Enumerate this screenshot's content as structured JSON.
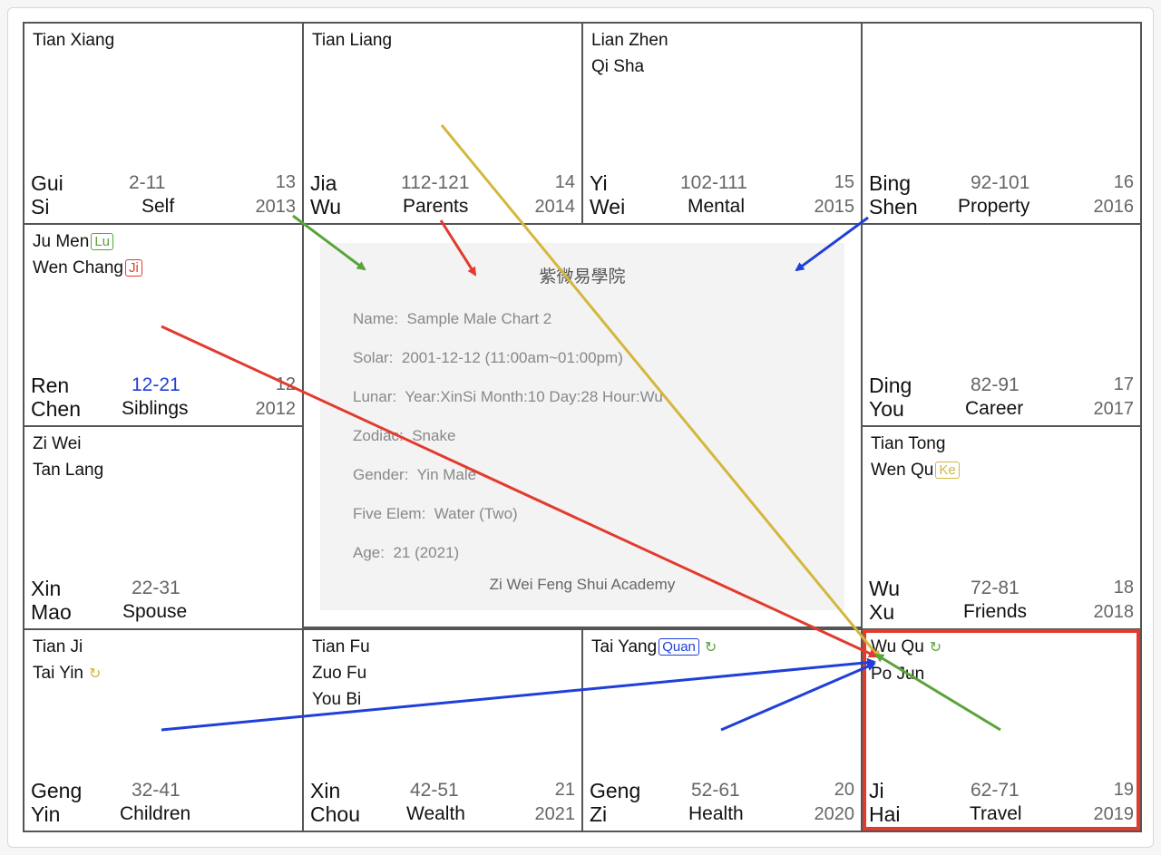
{
  "colors": {
    "border": "#555555",
    "highlight": "#e23b2e",
    "lu": "#5aa33b",
    "ji": "#e23b2e",
    "ke": "#d4b73c",
    "quan": "#1f3fd8",
    "blue_range": "#1f3fd8"
  },
  "palaces": [
    {
      "stars": [
        "Tian Xiang"
      ],
      "stem": "Gui",
      "branch": "Si",
      "range": "2-11",
      "palace": "Self",
      "num": "13",
      "year": "2013"
    },
    {
      "stars": [
        "Tian Liang"
      ],
      "stem": "Jia",
      "branch": "Wu",
      "range": "112-121",
      "palace": "Parents",
      "num": "14",
      "year": "2014"
    },
    {
      "stars": [
        "Lian Zhen",
        "Qi Sha"
      ],
      "stem": "Yi",
      "branch": "Wei",
      "range": "102-111",
      "palace": "Mental",
      "num": "15",
      "year": "2015"
    },
    {
      "stars": [],
      "stem": "Bing",
      "branch": "Shen",
      "range": "92-101",
      "palace": "Property",
      "num": "16",
      "year": "2016"
    },
    {
      "stars": [
        "Ju Men",
        "Wen Chang"
      ],
      "stem": "Ren",
      "branch": "Chen",
      "range": "12-21",
      "palace": "Siblings",
      "num": "12",
      "year": "2012"
    },
    {
      "stars": [],
      "stem": "Ding",
      "branch": "You",
      "range": "82-91",
      "palace": "Career",
      "num": "17",
      "year": "2017"
    },
    {
      "stars": [
        "Zi Wei",
        "Tan Lang"
      ],
      "stem": "Xin",
      "branch": "Mao",
      "range": "22-31",
      "palace": "Spouse",
      "num": "",
      "year": ""
    },
    {
      "stars": [
        "Tian Tong",
        "Wen Qu"
      ],
      "stem": "Wu",
      "branch": "Xu",
      "range": "72-81",
      "palace": "Friends",
      "num": "18",
      "year": "2018"
    },
    {
      "stars": [
        "Tian Ji",
        "Tai Yin"
      ],
      "stem": "Geng",
      "branch": "Yin",
      "range": "32-41",
      "palace": "Children",
      "num": "",
      "year": ""
    },
    {
      "stars": [
        "Tian Fu",
        "Zuo Fu",
        "You Bi"
      ],
      "stem": "Xin",
      "branch": "Chou",
      "range": "42-51",
      "palace": "Wealth",
      "num": "21",
      "year": "2021"
    },
    {
      "stars": [
        "Tai Yang"
      ],
      "stem": "Geng",
      "branch": "Zi",
      "range": "52-61",
      "palace": "Health",
      "num": "20",
      "year": "2020"
    },
    {
      "stars": [
        "Wu Qu",
        "Po Jun"
      ],
      "stem": "Ji",
      "branch": "Hai",
      "range": "62-71",
      "palace": "Travel",
      "num": "19",
      "year": "2019"
    }
  ],
  "transformations": {
    "lu": "Lu",
    "ji": "Ji",
    "ke": "Ke",
    "quan": "Quan"
  },
  "loop_glyph": "↻",
  "info": {
    "title": "紫微易學院",
    "name_label": "Name:",
    "name": "Sample Male Chart 2",
    "solar_label": "Solar:",
    "solar": "2001-12-12 (11:00am~01:00pm)",
    "lunar_label": "Lunar:",
    "lunar": "Year:XinSi Month:10 Day:28 Hour:Wu",
    "zodiac_label": "Zodiac:",
    "zodiac": "Snake",
    "gender_label": "Gender:",
    "gender": "Yin Male",
    "element_label": "Five Elem:",
    "element": "Water (Two)",
    "age_label": "Age:",
    "age": "21 (2021)",
    "footer": "Zi Wei Feng Shui Academy"
  }
}
